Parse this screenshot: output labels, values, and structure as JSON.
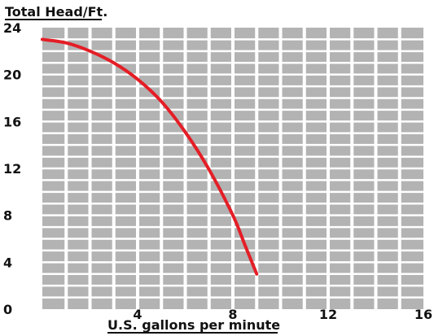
{
  "chart_data": {
    "type": "line",
    "title": "Total Head/Ft.",
    "xlabel": "U.S. gallons per minute",
    "ylabel": "",
    "xlim": [
      0,
      16
    ],
    "ylim": [
      0,
      24
    ],
    "x_ticks": [
      4,
      8,
      12,
      16
    ],
    "y_ticks": [
      0,
      4,
      8,
      12,
      16,
      20,
      24
    ],
    "x_tick_labels": [
      "4",
      "8",
      "12",
      "16"
    ],
    "y_tick_labels": [
      "0",
      "4",
      "8",
      "12",
      "16",
      "20",
      "24"
    ],
    "grid": true,
    "series": [
      {
        "x": [
          0,
          1,
          2,
          3,
          4,
          5,
          6,
          7,
          8,
          8.5,
          9
        ],
        "y": [
          23,
          22.7,
          22,
          21,
          19.6,
          17.7,
          15.1,
          11.9,
          8.0,
          5.5,
          3
        ]
      }
    ]
  },
  "colors": {
    "plot_background": "#b3b3b3",
    "grid": "#ffffff",
    "curve": "#e41e26",
    "text": "#111111"
  }
}
